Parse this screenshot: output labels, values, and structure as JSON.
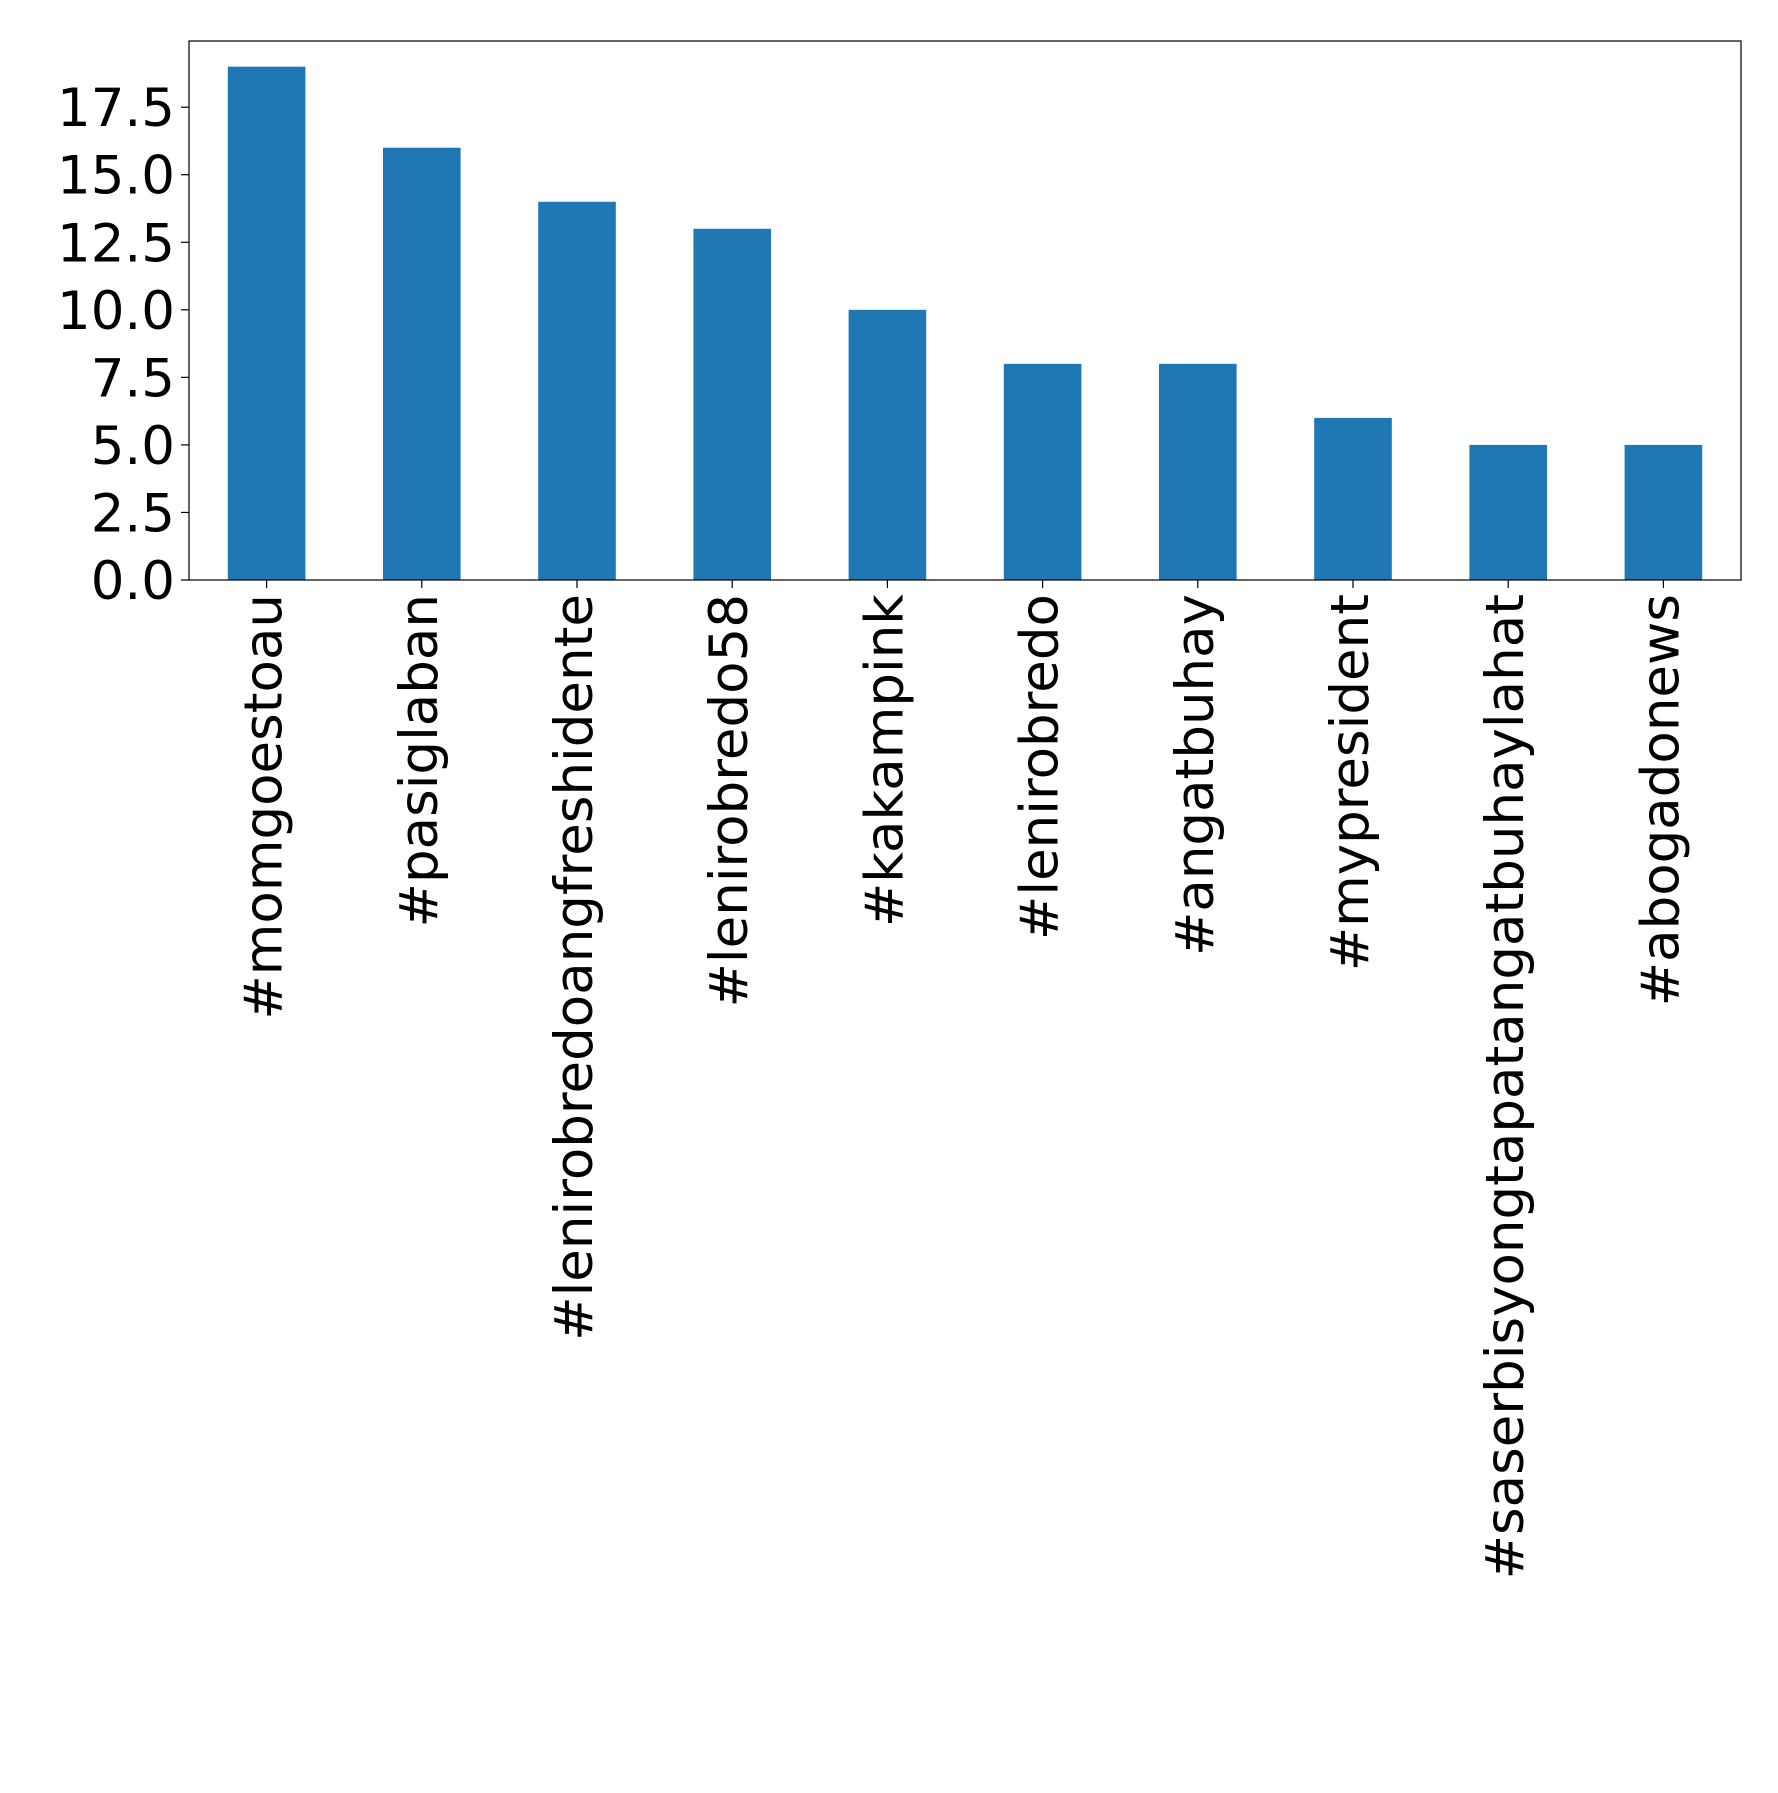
{
  "chart_data": {
    "type": "bar",
    "title": "",
    "xlabel": "",
    "ylabel": "",
    "categories": [
      "#momgoestoau",
      "#pasiglaban",
      "#lenirobredoangfreshidente",
      "#lenirobredo58",
      "#kakampink",
      "#lenirobredo",
      "#angatbuhay",
      "#mypresident",
      "#saserbisyongtapatangatbuhaylahat",
      "#abogadonews"
    ],
    "values": [
      19,
      16,
      14,
      13,
      10,
      8,
      8,
      6,
      5,
      5
    ],
    "yticks": [
      0.0,
      2.5,
      5.0,
      7.5,
      10.0,
      12.5,
      15.0,
      17.5
    ],
    "ytick_labels": [
      "0.0",
      "2.5",
      "5.0",
      "7.5",
      "10.0",
      "12.5",
      "15.0",
      "17.5"
    ],
    "ylim": [
      0,
      19.95
    ],
    "grid": false,
    "legend": "none",
    "bar_color": "#1f77b4"
  }
}
